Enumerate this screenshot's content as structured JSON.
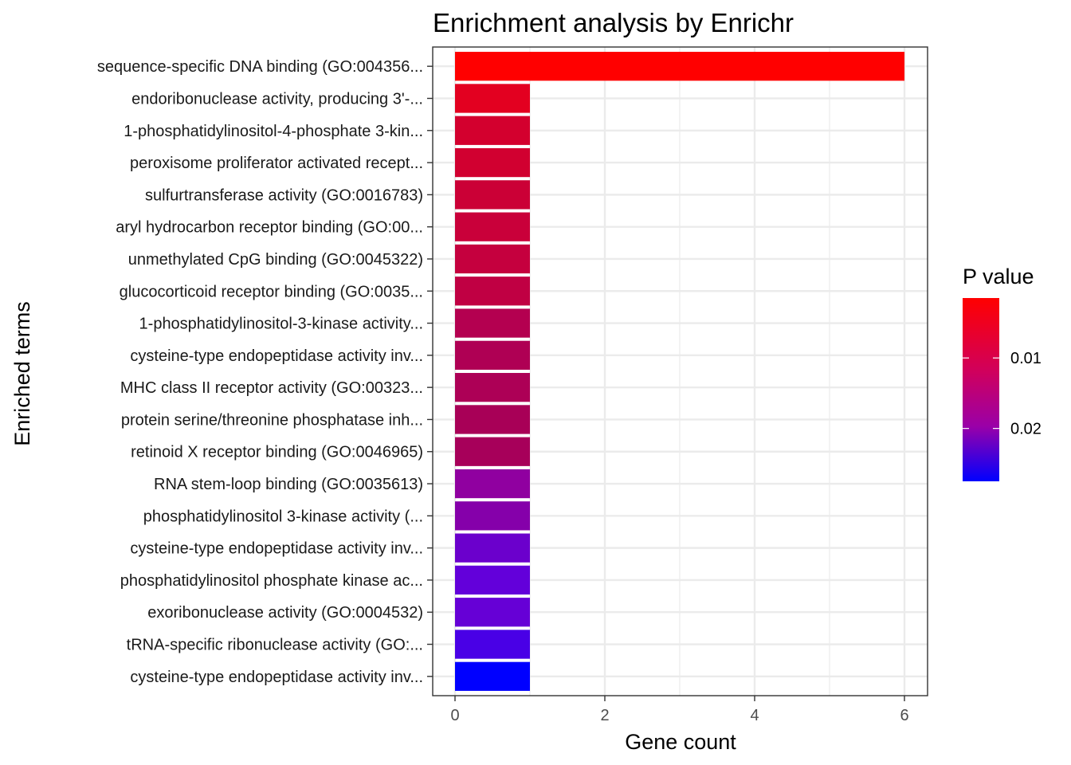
{
  "chart_data": {
    "type": "bar",
    "orientation": "horizontal",
    "title": "Enrichment analysis by Enrichr",
    "xlabel": "Gene count",
    "ylabel": "Enriched terms",
    "xlim": [
      0,
      6.3
    ],
    "xticks": [
      "0",
      "2",
      "4",
      "6"
    ],
    "xtick_values": [
      0,
      2,
      4,
      6
    ],
    "grid": true,
    "categories": [
      "sequence-specific DNA binding (GO:004356...",
      "endoribonuclease activity, producing 3'-...",
      "1-phosphatidylinositol-4-phosphate 3-kin...",
      "peroxisome proliferator activated recept...",
      "sulfurtransferase activity (GO:0016783)",
      "aryl hydrocarbon receptor binding (GO:00...",
      "unmethylated CpG binding (GO:0045322)",
      "glucocorticoid receptor binding (GO:0035...",
      "1-phosphatidylinositol-3-kinase activity...",
      "cysteine-type endopeptidase activity inv...",
      "MHC class II receptor activity (GO:00323...",
      "protein serine/threonine phosphatase inh...",
      "retinoid X receptor binding (GO:0046965)",
      "RNA stem-loop binding (GO:0035613)",
      "phosphatidylinositol 3-kinase activity (...",
      "cysteine-type endopeptidase activity inv...",
      "phosphatidylinositol phosphate kinase ac...",
      "exoribonuclease activity (GO:0004532)",
      "tRNA-specific ribonuclease activity (GO:...",
      "cysteine-type endopeptidase activity inv..."
    ],
    "values": [
      6,
      1,
      1,
      1,
      1,
      1,
      1,
      1,
      1,
      1,
      1,
      1,
      1,
      1,
      1,
      1,
      1,
      1,
      1,
      1
    ],
    "bar_colors": [
      "#FF0000",
      "#E30020",
      "#D3002E",
      "#D10030",
      "#CB0036",
      "#C9003A",
      "#C5003E",
      "#C00043",
      "#B40050",
      "#AF0054",
      "#AD0056",
      "#A80057",
      "#A7005A",
      "#9000A0",
      "#8500AA",
      "#6B00CC",
      "#6300DA",
      "#6600D6",
      "#4900E6",
      "#0000FF"
    ],
    "legend": {
      "title": "P value",
      "position": "right",
      "type": "colorbar",
      "ticks": [
        "0.01",
        "0.02"
      ],
      "tick_values": [
        0.01,
        0.02
      ],
      "range": [
        0.0015,
        0.0275
      ],
      "low_color": "#FF0000",
      "high_color": "#0000FF"
    }
  }
}
